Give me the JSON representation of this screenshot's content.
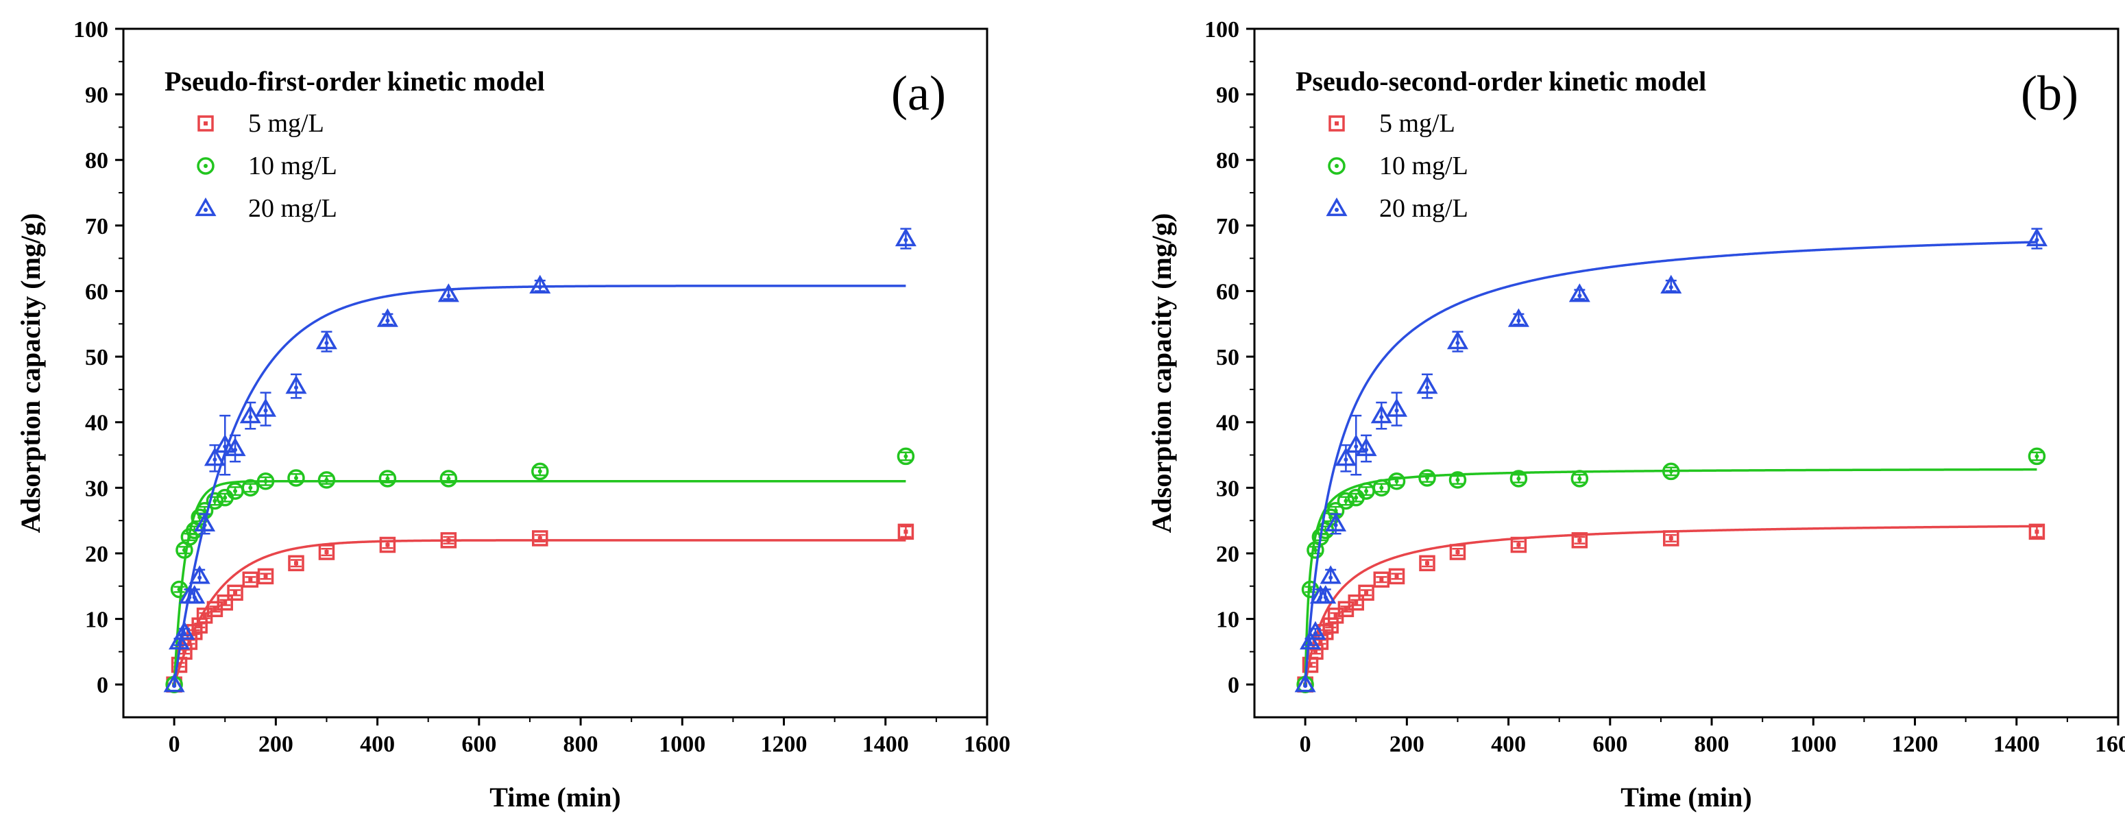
{
  "chart_data": [
    {
      "type": "scatter",
      "panel_label": "(a)",
      "title": "Pseudo-first-order kinetic model",
      "xlabel": "Time (min)",
      "ylabel": "Adsorption capacity (mg/g)",
      "xlim": [
        -100,
        1600
      ],
      "ylim": [
        -5,
        100
      ],
      "xticks": [
        "0",
        "200",
        "400",
        "600",
        "800",
        "1000",
        "1200",
        "1400",
        "1600"
      ],
      "yticks": [
        "0",
        "10",
        "20",
        "30",
        "40",
        "50",
        "60",
        "70",
        "80",
        "90",
        "100"
      ],
      "legend_position": "top-left",
      "grid": false,
      "model": "pfo",
      "series": [
        {
          "name": "5 mg/L",
          "marker": "square",
          "color": "#e8454a",
          "x": [
            0,
            10,
            20,
            30,
            40,
            50,
            60,
            80,
            100,
            120,
            150,
            180,
            240,
            300,
            420,
            540,
            720,
            1440
          ],
          "y": [
            0,
            3,
            5,
            6.5,
            8,
            9,
            10.5,
            11.5,
            12.5,
            14,
            16,
            16.5,
            18.5,
            20.2,
            21.3,
            22,
            22.3,
            23.3
          ],
          "err": [
            0,
            0.3,
            0.3,
            0.3,
            0.3,
            0.3,
            0.4,
            0.4,
            0.4,
            0.4,
            0.4,
            0.4,
            0.5,
            0.5,
            0.5,
            0.5,
            0.5,
            0.8
          ],
          "fit": {
            "qe": 22.0,
            "k": 0.012
          }
        },
        {
          "name": "10 mg/L",
          "marker": "circle",
          "color": "#22c51f",
          "x": [
            0,
            10,
            20,
            30,
            40,
            50,
            60,
            80,
            100,
            120,
            150,
            180,
            240,
            300,
            420,
            540,
            720,
            1440
          ],
          "y": [
            0,
            14.5,
            20.5,
            22.5,
            23.5,
            25.5,
            26.5,
            28,
            28.5,
            29.5,
            30,
            31,
            31.5,
            31.2,
            31.4,
            31.4,
            32.5,
            34.8
          ],
          "err": [
            0,
            0.4,
            0.5,
            0.5,
            0.6,
            0.6,
            0.6,
            0.6,
            0.6,
            0.6,
            0.6,
            0.6,
            0.6,
            0.6,
            0.6,
            0.6,
            0.6,
            0.6
          ],
          "fit": {
            "qe": 31.0,
            "k": 0.045
          }
        },
        {
          "name": "20 mg/L",
          "marker": "triangle",
          "color": "#2b4ee0",
          "x": [
            0,
            10,
            20,
            30,
            40,
            50,
            60,
            80,
            100,
            120,
            150,
            180,
            240,
            300,
            420,
            540,
            720,
            1440
          ],
          "y": [
            0,
            6.5,
            8,
            13.5,
            13.5,
            16.5,
            24.5,
            34.5,
            36.5,
            36,
            41,
            42,
            45.5,
            52.3,
            55.7,
            59.5,
            60.8,
            68
          ],
          "err": [
            0,
            0.5,
            0.5,
            1.0,
            1.0,
            1.0,
            1.5,
            2.0,
            4.5,
            2.0,
            2.0,
            2.5,
            1.8,
            1.5,
            0.8,
            0.7,
            0.8,
            1.5
          ],
          "fit": {
            "qe": 60.8,
            "k": 0.0087
          }
        }
      ]
    },
    {
      "type": "scatter",
      "panel_label": "(b)",
      "title": "Pseudo-second-order kinetic model",
      "xlabel": "Time (min)",
      "ylabel": "Adsorption capacity (mg/g)",
      "xlim": [
        -100,
        1600
      ],
      "ylim": [
        -5,
        100
      ],
      "xticks": [
        "0",
        "200",
        "400",
        "600",
        "800",
        "1000",
        "1200",
        "1400",
        "1600"
      ],
      "yticks": [
        "0",
        "10",
        "20",
        "30",
        "40",
        "50",
        "60",
        "70",
        "80",
        "90",
        "100"
      ],
      "legend_position": "top-left",
      "grid": false,
      "model": "pso",
      "series": [
        {
          "name": "5 mg/L",
          "marker": "square",
          "color": "#e8454a",
          "x": [
            0,
            10,
            20,
            30,
            40,
            50,
            60,
            80,
            100,
            120,
            150,
            180,
            240,
            300,
            420,
            540,
            720,
            1440
          ],
          "y": [
            0,
            3,
            5,
            6.5,
            8,
            9,
            10.5,
            11.5,
            12.5,
            14,
            16,
            16.5,
            18.5,
            20.2,
            21.3,
            22,
            22.3,
            23.3
          ],
          "err": [
            0,
            0.3,
            0.3,
            0.3,
            0.3,
            0.3,
            0.4,
            0.4,
            0.4,
            0.4,
            0.4,
            0.4,
            0.5,
            0.5,
            0.5,
            0.5,
            0.5,
            0.8
          ],
          "fit": {
            "qe": 25.0,
            "k": 0.00078
          }
        },
        {
          "name": "10 mg/L",
          "marker": "circle",
          "color": "#22c51f",
          "x": [
            0,
            10,
            20,
            30,
            40,
            50,
            60,
            80,
            100,
            120,
            150,
            180,
            240,
            300,
            420,
            540,
            720,
            1440
          ],
          "y": [
            0,
            14.5,
            20.5,
            22.5,
            23.5,
            25.5,
            26.5,
            28,
            28.5,
            29.5,
            30,
            31,
            31.5,
            31.2,
            31.4,
            31.4,
            32.5,
            34.8
          ],
          "err": [
            0,
            0.4,
            0.5,
            0.5,
            0.6,
            0.6,
            0.6,
            0.6,
            0.6,
            0.6,
            0.6,
            0.6,
            0.6,
            0.6,
            0.6,
            0.6,
            0.6,
            0.6
          ],
          "fit": {
            "qe": 33.0,
            "k": 0.0033
          }
        },
        {
          "name": "20 mg/L",
          "marker": "triangle",
          "color": "#2b4ee0",
          "x": [
            0,
            10,
            20,
            30,
            40,
            50,
            60,
            80,
            100,
            120,
            150,
            180,
            240,
            300,
            420,
            540,
            720,
            1440
          ],
          "y": [
            0,
            6.5,
            8,
            13.5,
            13.5,
            16.5,
            24.5,
            34.5,
            36.5,
            36,
            41,
            42,
            45.5,
            52.3,
            55.7,
            59.5,
            60.8,
            68
          ],
          "err": [
            0,
            0.5,
            0.5,
            1.0,
            1.0,
            1.0,
            1.5,
            2.0,
            4.5,
            2.0,
            2.0,
            2.5,
            1.8,
            1.5,
            0.8,
            0.7,
            0.8,
            1.5
          ],
          "fit": {
            "qe": 70.5,
            "k": 0.00022
          }
        }
      ]
    }
  ]
}
